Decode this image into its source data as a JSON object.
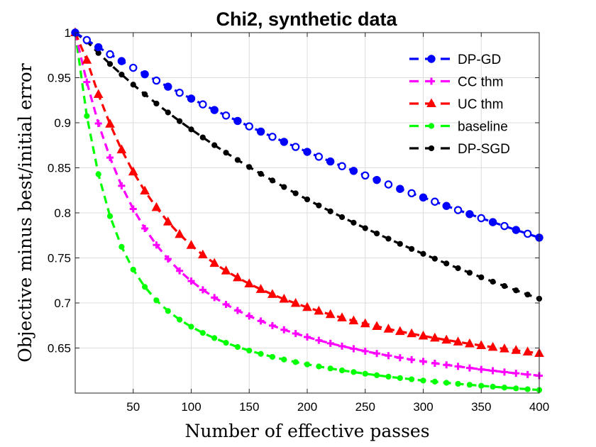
{
  "chart_data": {
    "type": "line",
    "title": "Chi2, synthetic data",
    "xlabel": "Number of effective passes",
    "ylabel": "Objective minus best/initial error",
    "xlim": [
      0,
      400
    ],
    "ylim": [
      0.6,
      1.0
    ],
    "grid": true,
    "legend_position": "top-right",
    "x_ticks": [
      50,
      100,
      150,
      200,
      250,
      300,
      350,
      400
    ],
    "x_tick_labels": [
      "50",
      "100",
      "150",
      "200",
      "250",
      "300",
      "350",
      "400"
    ],
    "y_ticks": [
      0.65,
      0.7,
      0.75,
      0.8,
      0.85,
      0.9,
      0.95,
      1.0
    ],
    "y_tick_labels": [
      "0.65",
      "0.7",
      "0.75",
      "0.8",
      "0.85",
      "0.9",
      "0.95",
      "1"
    ],
    "x": [
      0,
      10,
      20,
      30,
      40,
      50,
      60,
      70,
      80,
      90,
      100,
      110,
      120,
      130,
      140,
      150,
      160,
      170,
      180,
      190,
      200,
      210,
      220,
      230,
      240,
      250,
      260,
      270,
      280,
      290,
      300,
      310,
      320,
      330,
      340,
      350,
      360,
      370,
      380,
      390,
      400
    ],
    "series": [
      {
        "name": "DP-GD",
        "color": "#0000ff",
        "marker": "circle",
        "values": [
          1.0,
          0.9918,
          0.9838,
          0.976,
          0.9684,
          0.961,
          0.9538,
          0.9468,
          0.94,
          0.9333,
          0.9268,
          0.9204,
          0.9141,
          0.908,
          0.902,
          0.896,
          0.8902,
          0.8844,
          0.8788,
          0.8732,
          0.8677,
          0.8623,
          0.857,
          0.8518,
          0.8466,
          0.8415,
          0.8365,
          0.8315,
          0.8266,
          0.8218,
          0.8171,
          0.8124,
          0.8077,
          0.8031,
          0.7986,
          0.7941,
          0.7897,
          0.7854,
          0.781,
          0.7768,
          0.7725
        ]
      },
      {
        "name": "CC thm",
        "color": "#ff00ff",
        "marker": "plus",
        "values": [
          1.0,
          0.9452,
          0.8992,
          0.8613,
          0.83,
          0.8043,
          0.7827,
          0.7644,
          0.7488,
          0.7356,
          0.7243,
          0.7146,
          0.706,
          0.6984,
          0.6916,
          0.6855,
          0.68,
          0.6749,
          0.6703,
          0.6661,
          0.6622,
          0.6586,
          0.6552,
          0.6521,
          0.6492,
          0.6465,
          0.6439,
          0.6415,
          0.6392,
          0.6371,
          0.6351,
          0.6331,
          0.6313,
          0.6296,
          0.6279,
          0.6263,
          0.6248,
          0.6233,
          0.6219,
          0.6206,
          0.6193
        ]
      },
      {
        "name": "UC thm",
        "color": "#ff0000",
        "marker": "triangle",
        "values": [
          1.0,
          0.9695,
          0.9315,
          0.8985,
          0.87,
          0.8455,
          0.8243,
          0.806,
          0.79,
          0.7761,
          0.764,
          0.7534,
          0.744,
          0.7356,
          0.7281,
          0.7213,
          0.7151,
          0.7095,
          0.7043,
          0.6996,
          0.6951,
          0.691,
          0.6872,
          0.6836,
          0.6802,
          0.677,
          0.674,
          0.6711,
          0.6684,
          0.6659,
          0.6634,
          0.6611,
          0.6589,
          0.6568,
          0.6547,
          0.6528,
          0.6509,
          0.6491,
          0.6474,
          0.6457,
          0.6441
        ]
      },
      {
        "name": "baseline",
        "color": "#00ff00",
        "marker": "dot",
        "values": [
          1.0,
          0.9075,
          0.8428,
          0.7963,
          0.7623,
          0.737,
          0.7178,
          0.7029,
          0.6911,
          0.6815,
          0.6736,
          0.6668,
          0.661,
          0.6558,
          0.6512,
          0.6472,
          0.6435,
          0.6402,
          0.6372,
          0.6344,
          0.6318,
          0.6295,
          0.6273,
          0.6252,
          0.6233,
          0.6215,
          0.6198,
          0.6182,
          0.6167,
          0.6153,
          0.6139,
          0.6127,
          0.6114,
          0.6103,
          0.6092,
          0.6081,
          0.6071,
          0.6061,
          0.6052,
          0.6043,
          0.6034
        ]
      },
      {
        "name": "DP-SGD",
        "color": "#000000",
        "marker": "dot",
        "values": [
          1.0,
          0.9902,
          0.9774,
          0.9652,
          0.9535,
          0.9423,
          0.9316,
          0.9213,
          0.9114,
          0.9018,
          0.8926,
          0.8837,
          0.8751,
          0.8668,
          0.8587,
          0.8509,
          0.8433,
          0.8359,
          0.8287,
          0.8217,
          0.8149,
          0.8082,
          0.8017,
          0.7953,
          0.7891,
          0.783,
          0.7771,
          0.7713,
          0.7656,
          0.76,
          0.7545,
          0.7491,
          0.7438,
          0.7386,
          0.7335,
          0.7285,
          0.7236,
          0.7188,
          0.714,
          0.7093,
          0.7047
        ]
      }
    ]
  }
}
